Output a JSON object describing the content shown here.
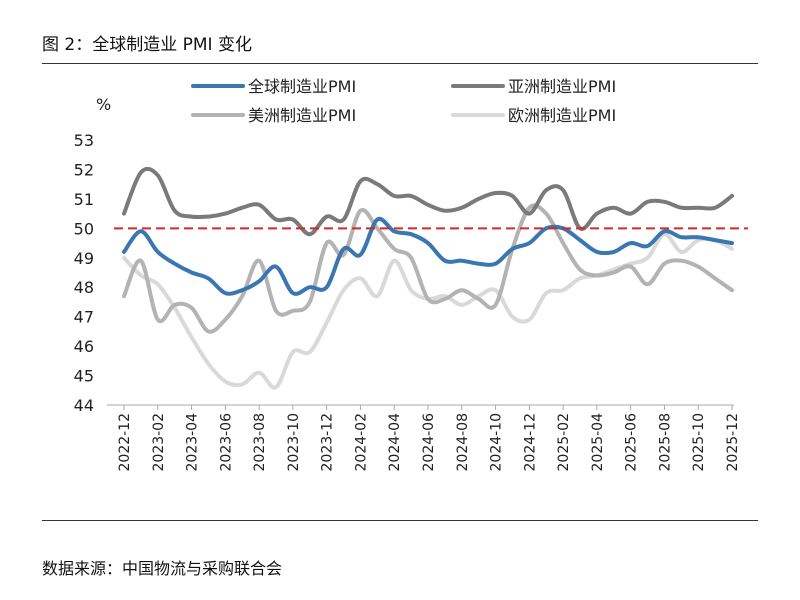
{
  "figure_title": "图 2：全球制造业 PMI 变化",
  "source_note": "数据来源：中国物流与采购联合会",
  "chart_data": {
    "type": "line",
    "ylabel": "%",
    "ylim": [
      44,
      53
    ],
    "yticks": [
      "44",
      "45",
      "46",
      "47",
      "48",
      "49",
      "50",
      "51",
      "52",
      "53"
    ],
    "x": [
      "2022-12",
      "2023-01",
      "2023-02",
      "2023-03",
      "2023-04",
      "2023-05",
      "2023-06",
      "2023-07",
      "2023-08",
      "2023-09",
      "2023-10",
      "2023-11",
      "2023-12",
      "2024-01",
      "2024-02",
      "2024-03",
      "2024-04",
      "2024-05",
      "2024-06",
      "2024-07",
      "2024-08",
      "2024-09",
      "2024-10",
      "2024-11",
      "2024-12",
      "2025-01",
      "2025-02",
      "2025-03",
      "2025-04",
      "2025-05",
      "2025-06",
      "2025-07",
      "2025-08",
      "2025-09",
      "2025-10",
      "2025-11",
      "2025-12"
    ],
    "xticks": [
      "2022-12",
      "2023-02",
      "2023-04",
      "2023-06",
      "2023-08",
      "2023-10",
      "2023-12",
      "2024-02",
      "2024-04",
      "2024-06",
      "2024-08",
      "2024-10",
      "2024-12",
      "2025-02",
      "2025-04",
      "2025-06",
      "2025-08",
      "2025-10",
      "2025-12"
    ],
    "reference_line": {
      "y": 50,
      "color": "#d62728",
      "style": "dashed"
    },
    "grid": false,
    "legend": "top",
    "series": [
      {
        "name": "全球制造业PMI",
        "color": "#3a76b0",
        "width": 4,
        "values": [
          49.2,
          49.9,
          49.2,
          48.8,
          48.5,
          48.3,
          47.8,
          47.9,
          48.2,
          48.7,
          47.8,
          48.0,
          48.0,
          49.3,
          49.1,
          50.3,
          49.9,
          49.8,
          49.5,
          48.9,
          48.9,
          48.8,
          48.8,
          49.3,
          49.5,
          50.0,
          50.0,
          49.6,
          49.2,
          49.2,
          49.5,
          49.4,
          49.9,
          49.7,
          49.7,
          49.6,
          49.5
        ]
      },
      {
        "name": "亚洲制造业PMI",
        "color": "#7a7a7a",
        "width": 4,
        "values": [
          50.5,
          51.9,
          51.8,
          50.6,
          50.4,
          50.4,
          50.5,
          50.7,
          50.8,
          50.3,
          50.3,
          49.8,
          50.4,
          50.3,
          51.6,
          51.5,
          51.1,
          51.1,
          50.8,
          50.6,
          50.7,
          51.0,
          51.2,
          51.1,
          50.5,
          51.3,
          51.3,
          50.0,
          50.5,
          50.7,
          50.5,
          50.9,
          50.9,
          50.7,
          50.7,
          50.7,
          51.1
        ]
      },
      {
        "name": "美洲制造业PMI",
        "color": "#b3b3b3",
        "width": 4,
        "values": [
          47.7,
          48.9,
          46.9,
          47.4,
          47.3,
          46.5,
          46.9,
          47.7,
          48.9,
          47.2,
          47.2,
          47.5,
          49.5,
          49.1,
          50.6,
          50.0,
          49.3,
          49.0,
          47.6,
          47.6,
          47.9,
          47.6,
          47.4,
          49.3,
          50.7,
          50.5,
          49.5,
          48.6,
          48.4,
          48.5,
          48.7,
          48.1,
          48.8,
          48.9,
          48.7,
          48.3,
          47.9
        ]
      },
      {
        "name": "欧洲制造业PMI",
        "color": "#d9d9d9",
        "width": 4,
        "values": [
          49.0,
          48.4,
          48.1,
          47.3,
          46.3,
          45.4,
          44.8,
          44.7,
          45.1,
          44.6,
          45.8,
          45.8,
          46.8,
          47.9,
          48.3,
          47.7,
          48.9,
          47.9,
          47.6,
          47.7,
          47.4,
          47.7,
          47.9,
          47.0,
          46.9,
          47.8,
          47.9,
          48.3,
          48.4,
          48.6,
          48.8,
          49.0,
          49.8,
          49.2,
          49.6,
          49.6,
          49.3
        ]
      }
    ]
  }
}
